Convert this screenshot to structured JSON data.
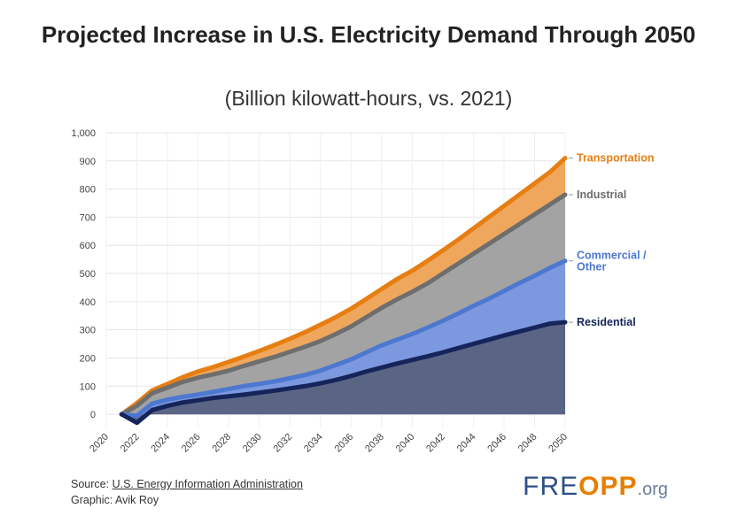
{
  "chart_data": {
    "type": "area",
    "title": "Projected Increase in U.S. Electricity Demand Through 2050",
    "subtitle": "(Billion kilowatt-hours, vs. 2021)",
    "x": [
      2021,
      2022,
      2023,
      2024,
      2025,
      2026,
      2027,
      2028,
      2029,
      2030,
      2031,
      2032,
      2033,
      2034,
      2035,
      2036,
      2037,
      2038,
      2039,
      2040,
      2041,
      2042,
      2043,
      2044,
      2045,
      2046,
      2047,
      2048,
      2049,
      2050
    ],
    "xlim": [
      2020,
      2050
    ],
    "xticks": [
      "2020",
      "2022",
      "2024",
      "2026",
      "2028",
      "2030",
      "2032",
      "2034",
      "2036",
      "2038",
      "2040",
      "2042",
      "2044",
      "2046",
      "2048",
      "2050"
    ],
    "ylim": [
      -50,
      1000
    ],
    "yticks": [
      "0",
      "100",
      "200",
      "300",
      "400",
      "500",
      "600",
      "700",
      "800",
      "900",
      "1,000"
    ],
    "series": [
      {
        "name": "Residential",
        "color": "#15245a",
        "fill": "#5a6585",
        "values": [
          0,
          -30,
          15,
          30,
          42,
          50,
          58,
          64,
          70,
          77,
          84,
          92,
          100,
          110,
          122,
          136,
          152,
          166,
          180,
          193,
          206,
          220,
          235,
          250,
          265,
          280,
          294,
          308,
          322,
          327
        ]
      },
      {
        "name": "Commercial / Other",
        "color": "#4d78d0",
        "fill": "#7c98de",
        "values": [
          0,
          -5,
          38,
          52,
          62,
          70,
          80,
          90,
          100,
          108,
          117,
          128,
          140,
          155,
          175,
          195,
          220,
          245,
          265,
          285,
          308,
          332,
          358,
          385,
          410,
          438,
          466,
          492,
          520,
          545
        ]
      },
      {
        "name": "Industrial",
        "color": "#6e6e6e",
        "fill": "#a3a3a3",
        "values": [
          0,
          30,
          75,
          95,
          115,
          130,
          142,
          155,
          172,
          188,
          204,
          222,
          240,
          260,
          285,
          312,
          345,
          378,
          408,
          435,
          465,
          500,
          535,
          570,
          605,
          640,
          675,
          710,
          745,
          780
        ]
      },
      {
        "name": "Transportation",
        "color": "#e67e12",
        "fill": "#eea75c",
        "values": [
          0,
          40,
          85,
          108,
          132,
          152,
          168,
          186,
          205,
          225,
          246,
          268,
          292,
          318,
          345,
          375,
          410,
          445,
          480,
          510,
          545,
          582,
          620,
          660,
          700,
          740,
          780,
          820,
          860,
          910
        ]
      }
    ]
  },
  "footer": {
    "source_prefix": "Source: ",
    "source_link": "U.S. Energy Information Administration",
    "graphic": "Graphic: Avik Roy"
  },
  "logo": {
    "part1": "FRE",
    "part2": "OPP",
    "part3": ".org"
  }
}
